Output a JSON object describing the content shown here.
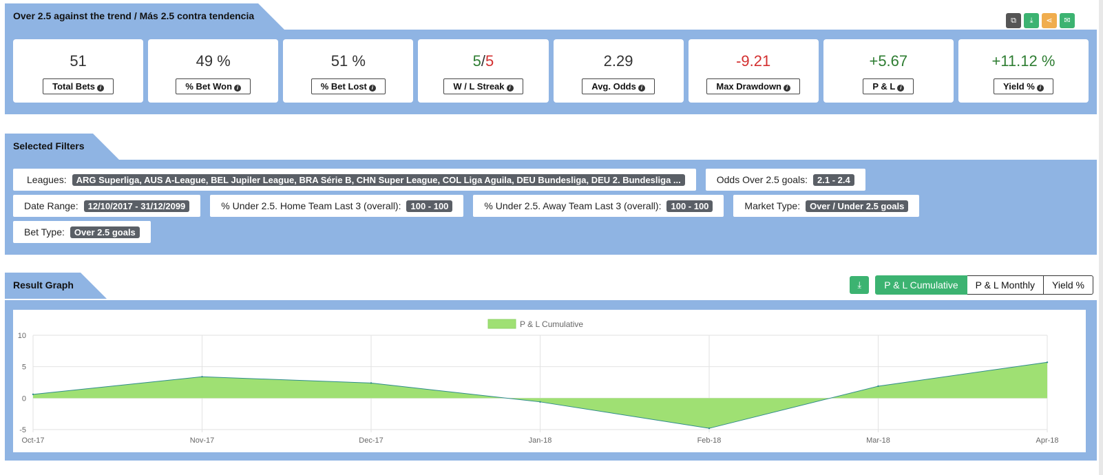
{
  "strategy": {
    "title": "Over 2.5 against the trend / Más 2.5 contra tendencia",
    "toolbar_icons": [
      {
        "name": "copy-icon",
        "glyph": "⧉",
        "color": "#555555"
      },
      {
        "name": "download-icon",
        "glyph": "⤓",
        "color": "#3cb371"
      },
      {
        "name": "share-icon",
        "glyph": "⋖",
        "color": "#f0ad4e"
      },
      {
        "name": "email-icon",
        "glyph": "✉",
        "color": "#3cb371"
      }
    ]
  },
  "stats": {
    "total_bets": {
      "value": "51",
      "label": "Total Bets"
    },
    "bet_won": {
      "value": "49 %",
      "label": "% Bet Won"
    },
    "bet_lost": {
      "value": "51 %",
      "label": "% Bet Lost"
    },
    "streak": {
      "win": "5",
      "sep": "/",
      "loss": "5",
      "label": "W / L Streak"
    },
    "avg_odds": {
      "value": "2.29",
      "label": "Avg. Odds"
    },
    "max_drawdown": {
      "value": "-9.21",
      "label": "Max Drawdown"
    },
    "pl": {
      "value": "+5.67",
      "label": "P & L"
    },
    "yield": {
      "value": "+11.12 %",
      "label": "Yield %"
    }
  },
  "filters": {
    "title": "Selected Filters",
    "leagues": {
      "label": "Leagues:",
      "value": "ARG Superliga, AUS A-League, BEL Jupiler League, BRA Série B, CHN Super League, COL Liga Aguila, DEU Bundesliga, DEU 2. Bundesliga ..."
    },
    "odds_over": {
      "label": "Odds Over 2.5 goals:",
      "value": "2.1 - 2.4"
    },
    "date_range": {
      "label": "Date Range:",
      "value": "12/10/2017 - 31/12/2099"
    },
    "under_home": {
      "label": "% Under 2.5. Home Team Last 3 (overall):",
      "value": "100 - 100"
    },
    "under_away": {
      "label": "% Under 2.5. Away Team Last 3 (overall):",
      "value": "100 - 100"
    },
    "market_type": {
      "label": "Market Type:",
      "value": "Over / Under 2.5 goals"
    },
    "bet_type": {
      "label": "Bet Type:",
      "value": "Over 2.5 goals"
    }
  },
  "graph": {
    "title": "Result Graph",
    "buttons": {
      "cumulative": "P & L Cumulative",
      "monthly": "P & L Monthly",
      "yield": "Yield %"
    },
    "active": "cumulative"
  },
  "chart_data": {
    "type": "area",
    "legend": "P & L Cumulative",
    "legend_position": "top-center",
    "categories": [
      "Oct-17",
      "Nov-17",
      "Dec-17",
      "Jan-18",
      "Feb-18",
      "Mar-18",
      "Apr-18"
    ],
    "series": [
      {
        "name": "P & L Cumulative",
        "values": [
          0.6,
          3.4,
          2.4,
          -0.6,
          -4.8,
          1.9,
          5.7
        ]
      }
    ],
    "y_ticks": [
      10,
      5,
      0,
      -5
    ],
    "ylim": [
      -5,
      10
    ],
    "grid": true,
    "fill_color": "#9fe073",
    "line_color": "#2e8b8b"
  }
}
